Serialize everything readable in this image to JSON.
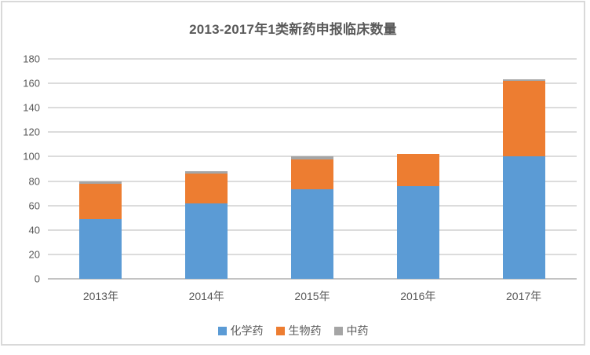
{
  "chart_data": {
    "type": "bar",
    "stacked": true,
    "title": "2013-2017年1类新药申报临床数量",
    "categories": [
      "2013年",
      "2014年",
      "2015年",
      "2016年",
      "2017年"
    ],
    "series": [
      {
        "name": "化学药",
        "color": "#5B9BD5",
        "values": [
          49,
          62,
          73,
          76,
          100
        ]
      },
      {
        "name": "生物药",
        "color": "#ED7D31",
        "values": [
          29,
          24,
          25,
          26,
          62
        ]
      },
      {
        "name": "中药",
        "color": "#A5A5A5",
        "values": [
          2,
          2,
          2,
          0,
          1
        ]
      }
    ],
    "totals": [
      80,
      88,
      100,
      102,
      163
    ],
    "ylabel": "",
    "xlabel": "",
    "ylim": [
      0,
      180
    ],
    "ytick_step": 20,
    "ytick_labels": [
      "0",
      "20",
      "40",
      "60",
      "80",
      "100",
      "120",
      "140",
      "160",
      "180"
    ],
    "grid": true,
    "legend_position": "bottom"
  },
  "frame": {
    "border_color": "#D9D9D9",
    "background": "#FFFFFF",
    "gridline_color": "#DCDCDC",
    "axis_line_color": "#C3C3C3",
    "text_color": "#595959"
  }
}
